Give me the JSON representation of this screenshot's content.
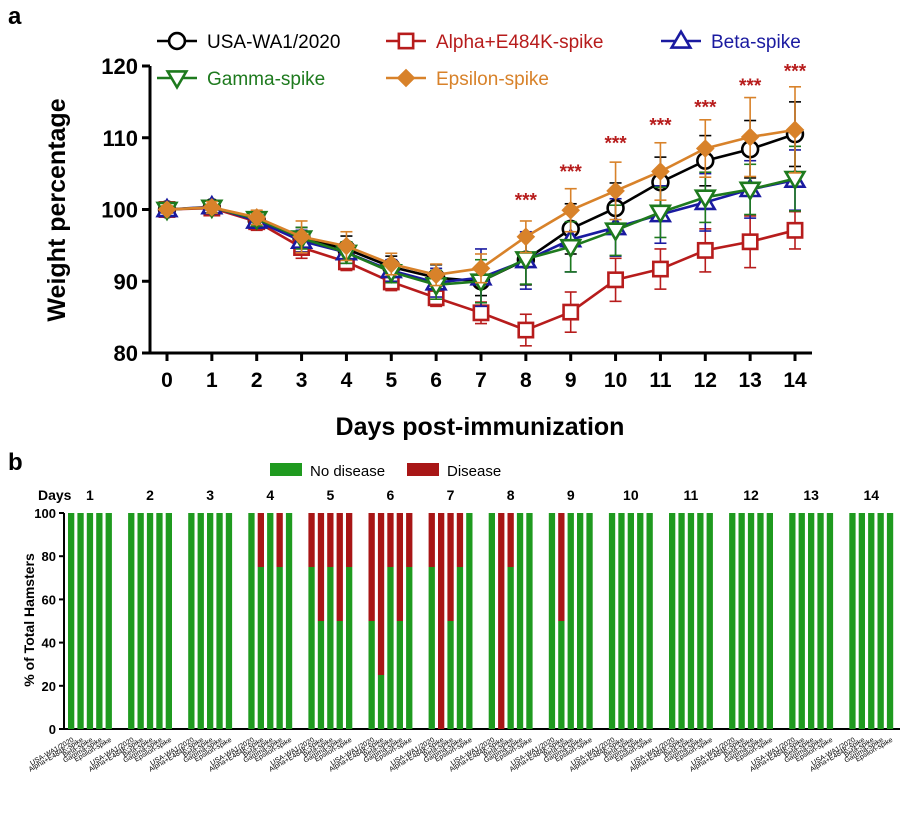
{
  "panels": {
    "a": "a",
    "b": "b"
  },
  "colors": {
    "usa": "#000000",
    "alpha": "#b71c1c",
    "beta": "#1a1aa0",
    "gamma": "#1e7a1e",
    "epsilon": "#d8822a",
    "no_disease": "#1f9a1f",
    "disease": "#a81616",
    "star": "#b71c1c"
  },
  "chart_data": [
    {
      "type": "line",
      "xlabel": "Days post-immunization",
      "ylabel": "Weight percentage",
      "x": [
        0,
        1,
        2,
        3,
        4,
        5,
        6,
        7,
        8,
        9,
        10,
        11,
        12,
        13,
        14
      ],
      "xlim": [
        0,
        14
      ],
      "ylim": [
        80,
        120
      ],
      "yticks": [
        80,
        90,
        100,
        110,
        120
      ],
      "series": [
        {
          "name": "USA-WA1/2020",
          "marker": "circle",
          "values": [
            100,
            100.3,
            98.5,
            96,
            94.5,
            92,
            90.5,
            90,
            93,
            97.3,
            100.2,
            103.8,
            106.8,
            108.4,
            110.5
          ],
          "err": [
            0.5,
            0.8,
            1.2,
            1.5,
            1.8,
            1.5,
            1.8,
            2.0,
            3.5,
            3.5,
            3.5,
            3.5,
            3.5,
            4.0,
            4.5
          ]
        },
        {
          "name": "Alpha+E484K-spike",
          "marker": "square",
          "values": [
            100,
            100.2,
            98.3,
            94.7,
            92.7,
            89.9,
            87.7,
            85.6,
            83.2,
            85.7,
            90.2,
            91.7,
            94.3,
            95.5,
            97.1
          ],
          "err": [
            0.5,
            0.8,
            1.2,
            1.5,
            1.2,
            1.2,
            1.2,
            1.5,
            2.2,
            2.8,
            3.0,
            2.8,
            3.0,
            3.6,
            2.6
          ]
        },
        {
          "name": "Beta-spike",
          "marker": "triangle-up",
          "values": [
            100,
            100.4,
            98.4,
            95.6,
            94,
            91.5,
            89.8,
            90.5,
            92.9,
            95.8,
            97.5,
            99.3,
            101,
            102.8,
            104.1
          ],
          "err": [
            0.5,
            0.8,
            1.0,
            1.5,
            1.5,
            1.5,
            2.0,
            4.0,
            4.0,
            4.5,
            4.0,
            4.0,
            4.0,
            4.0,
            4.2
          ]
        },
        {
          "name": "Gamma-spike",
          "marker": "triangle-down",
          "values": [
            100,
            100.3,
            98.7,
            96,
            94,
            91.3,
            89.5,
            90,
            93.1,
            94.8,
            97.1,
            99.6,
            101.7,
            102.8,
            104.3
          ],
          "err": [
            0.5,
            0.8,
            1.0,
            1.5,
            1.5,
            1.5,
            2.0,
            3.0,
            3.5,
            3.5,
            3.5,
            3.5,
            3.5,
            3.5,
            4.5
          ]
        },
        {
          "name": "Epsilon-spike",
          "marker": "diamond",
          "values": [
            100,
            100.3,
            98.9,
            96.2,
            94.9,
            92.4,
            90.9,
            91.8,
            96.2,
            99.9,
            102.6,
            105.3,
            108.5,
            110.1,
            111.1
          ],
          "err": [
            0.5,
            0.8,
            1.0,
            2.2,
            2.0,
            1.5,
            1.5,
            2.0,
            2.2,
            3.0,
            4.0,
            4.0,
            4.0,
            5.5,
            6.0
          ]
        }
      ],
      "annotations": [
        {
          "x": 8,
          "text": "***",
          "y": 101.5
        },
        {
          "x": 9,
          "text": "***",
          "y": 105.5
        },
        {
          "x": 10,
          "text": "***",
          "y": 109.5
        },
        {
          "x": 11,
          "text": "***",
          "y": 112
        },
        {
          "x": 12,
          "text": "***",
          "y": 114.5
        },
        {
          "x": 13,
          "text": "***",
          "y": 117.5
        },
        {
          "x": 14,
          "text": "***",
          "y": 119.5
        }
      ]
    },
    {
      "type": "bar",
      "stacked": true,
      "ylabel": "% of Total Hamsters",
      "ylim": [
        0,
        100
      ],
      "yticks": [
        0,
        20,
        40,
        60,
        80,
        100
      ],
      "days_label": "Days",
      "days": [
        1,
        2,
        3,
        4,
        5,
        6,
        7,
        8,
        9,
        10,
        11,
        12,
        13,
        14
      ],
      "groups": [
        "USA-WA1/2020",
        "Alpha+E484K-spike",
        "Beta-spike",
        "Gamma-spike",
        "Epsilon-spike"
      ],
      "series": [
        {
          "name": "No disease"
        },
        {
          "name": "Disease"
        }
      ],
      "no_disease_pct": [
        [
          100,
          100,
          100,
          100,
          100
        ],
        [
          100,
          100,
          100,
          100,
          100
        ],
        [
          100,
          100,
          100,
          100,
          100
        ],
        [
          100,
          75,
          100,
          75,
          100
        ],
        [
          75,
          50,
          75,
          50,
          75
        ],
        [
          50,
          25,
          75,
          50,
          75
        ],
        [
          75,
          0,
          50,
          75,
          100
        ],
        [
          100,
          0,
          75,
          100,
          100
        ],
        [
          100,
          50,
          100,
          100,
          100
        ],
        [
          100,
          100,
          100,
          100,
          100
        ],
        [
          100,
          100,
          100,
          100,
          100
        ],
        [
          100,
          100,
          100,
          100,
          100
        ],
        [
          100,
          100,
          100,
          100,
          100
        ],
        [
          100,
          100,
          100,
          100,
          100
        ]
      ]
    }
  ]
}
